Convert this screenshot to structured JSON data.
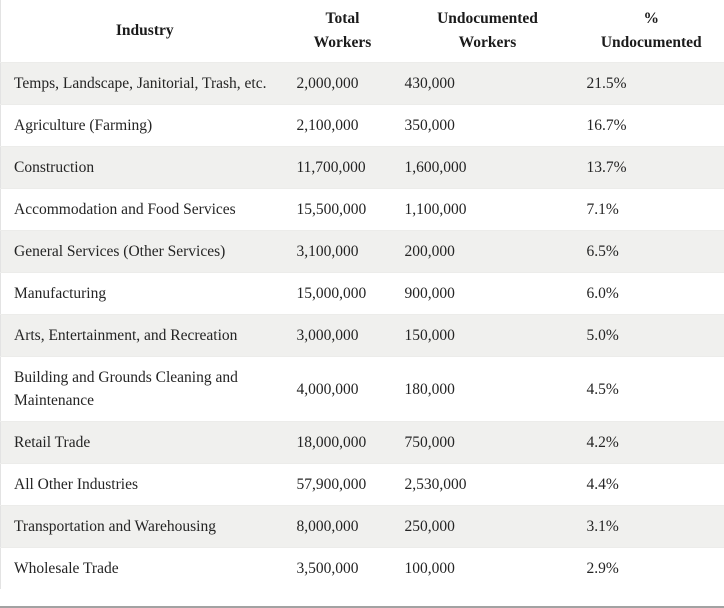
{
  "table": {
    "columns": [
      {
        "id": "industry",
        "label": "Industry"
      },
      {
        "id": "total_workers",
        "label": "Total Workers"
      },
      {
        "id": "undocumented_workers",
        "label": "Undocumented Workers"
      },
      {
        "id": "pct_undocumented",
        "label": "% Undocumented"
      }
    ],
    "rows": [
      {
        "industry": "Temps, Landscape, Janitorial, Trash, etc.",
        "total_workers": "2,000,000",
        "undocumented_workers": "430,000",
        "pct_undocumented": "21.5%"
      },
      {
        "industry": "Agriculture (Farming)",
        "total_workers": "2,100,000",
        "undocumented_workers": "350,000",
        "pct_undocumented": "16.7%"
      },
      {
        "industry": "Construction",
        "total_workers": "11,700,000",
        "undocumented_workers": "1,600,000",
        "pct_undocumented": "13.7%"
      },
      {
        "industry": "Accommodation and Food Services",
        "total_workers": "15,500,000",
        "undocumented_workers": "1,100,000",
        "pct_undocumented": "7.1%"
      },
      {
        "industry": "General Services (Other Services)",
        "total_workers": "3,100,000",
        "undocumented_workers": "200,000",
        "pct_undocumented": "6.5%"
      },
      {
        "industry": "Manufacturing",
        "total_workers": "15,000,000",
        "undocumented_workers": "900,000",
        "pct_undocumented": "6.0%"
      },
      {
        "industry": "Arts, Entertainment, and Recreation",
        "total_workers": "3,000,000",
        "undocumented_workers": "150,000",
        "pct_undocumented": "5.0%"
      },
      {
        "industry": "Building and Grounds Cleaning and Maintenance",
        "total_workers": "4,000,000",
        "undocumented_workers": "180,000",
        "pct_undocumented": "4.5%"
      },
      {
        "industry": "Retail Trade",
        "total_workers": "18,000,000",
        "undocumented_workers": "750,000",
        "pct_undocumented": "4.2%"
      },
      {
        "industry": "All Other Industries",
        "total_workers": "57,900,000",
        "undocumented_workers": "2,530,000",
        "pct_undocumented": "4.4%"
      },
      {
        "industry": "Transportation and Warehousing",
        "total_workers": "8,000,000",
        "undocumented_workers": "250,000",
        "pct_undocumented": "3.1%"
      },
      {
        "industry": "Wholesale Trade",
        "total_workers": "3,500,000",
        "undocumented_workers": "100,000",
        "pct_undocumented": "2.9%"
      }
    ]
  },
  "colors": {
    "stripe_row_bg": "#f0f0ee",
    "row_divider": "#ececea",
    "table_border": "#e3e3e3",
    "text": "#242424",
    "heading_text": "#1b1b1b",
    "bottom_edge": "#a2a2a2"
  }
}
